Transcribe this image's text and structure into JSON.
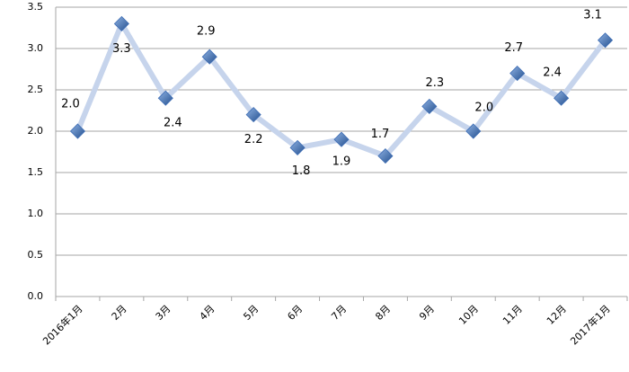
{
  "chart_data": {
    "type": "line",
    "categories": [
      "2016年1月",
      "2月",
      "3月",
      "4月",
      "5月",
      "6月",
      "7月",
      "8月",
      "9月",
      "10月",
      "11月",
      "12月",
      "2017年1月"
    ],
    "series": [
      {
        "color": "#c6d4ec",
        "marker_color": "#3c6cb4",
        "values": [
          2.0,
          3.3,
          2.4,
          2.9,
          2.2,
          1.8,
          1.9,
          1.7,
          2.3,
          2.0,
          2.7,
          2.4,
          3.1
        ],
        "value_labels": [
          "2.0",
          "3.3",
          "2.4",
          "2.9",
          "2.2",
          "1.8",
          "1.9",
          "1.7",
          "2.3",
          "2.0",
          "2.7",
          "2.4",
          "3.1"
        ]
      }
    ],
    "ylim": [
      0,
      3.5
    ],
    "yticks": [
      {
        "value": 0,
        "label": "0.0"
      },
      {
        "value": 0.5,
        "label": "0.5"
      },
      {
        "value": 1,
        "label": "1.0"
      },
      {
        "value": 1.5,
        "label": "1.5"
      },
      {
        "value": 2,
        "label": "2.0"
      },
      {
        "value": 2.5,
        "label": "2.5"
      },
      {
        "value": 3,
        "label": "3.0"
      },
      {
        "value": 3.5,
        "label": "3.5"
      }
    ],
    "grid": true
  }
}
